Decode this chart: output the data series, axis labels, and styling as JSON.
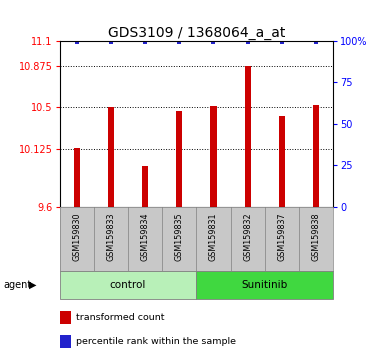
{
  "title": "GDS3109 / 1368064_a_at",
  "samples": [
    "GSM159830",
    "GSM159833",
    "GSM159834",
    "GSM159835",
    "GSM159831",
    "GSM159832",
    "GSM159837",
    "GSM159838"
  ],
  "bar_values": [
    10.13,
    10.5,
    9.97,
    10.47,
    10.51,
    10.87,
    10.42,
    10.52
  ],
  "percentile_values": [
    99,
    99,
    99,
    99,
    99,
    99,
    99,
    99
  ],
  "groups": [
    {
      "label": "control",
      "indices": [
        0,
        1,
        2,
        3
      ],
      "color": "#b8f0b8"
    },
    {
      "label": "Sunitinib",
      "indices": [
        4,
        5,
        6,
        7
      ],
      "color": "#40d840"
    }
  ],
  "bar_color": "#cc0000",
  "dot_color": "#2222cc",
  "ylim_left": [
    9.6,
    11.1
  ],
  "ylim_right": [
    0,
    100
  ],
  "yticks_left": [
    9.6,
    10.125,
    10.5,
    10.875,
    11.1
  ],
  "yticks_right": [
    0,
    25,
    50,
    75,
    100
  ],
  "ytick_labels_left": [
    "9.6",
    "10.125",
    "10.5",
    "10.875",
    "11.1"
  ],
  "ytick_labels_right": [
    "0",
    "25",
    "50",
    "75",
    "100%"
  ],
  "grid_values": [
    10.125,
    10.5,
    10.875
  ],
  "bar_width": 0.18,
  "sample_bg_color": "#c8c8c8",
  "title_fontsize": 10,
  "tick_fontsize": 7,
  "label_fontsize": 7.5,
  "legend_bar_label": "transformed count",
  "legend_dot_label": "percentile rank within the sample"
}
